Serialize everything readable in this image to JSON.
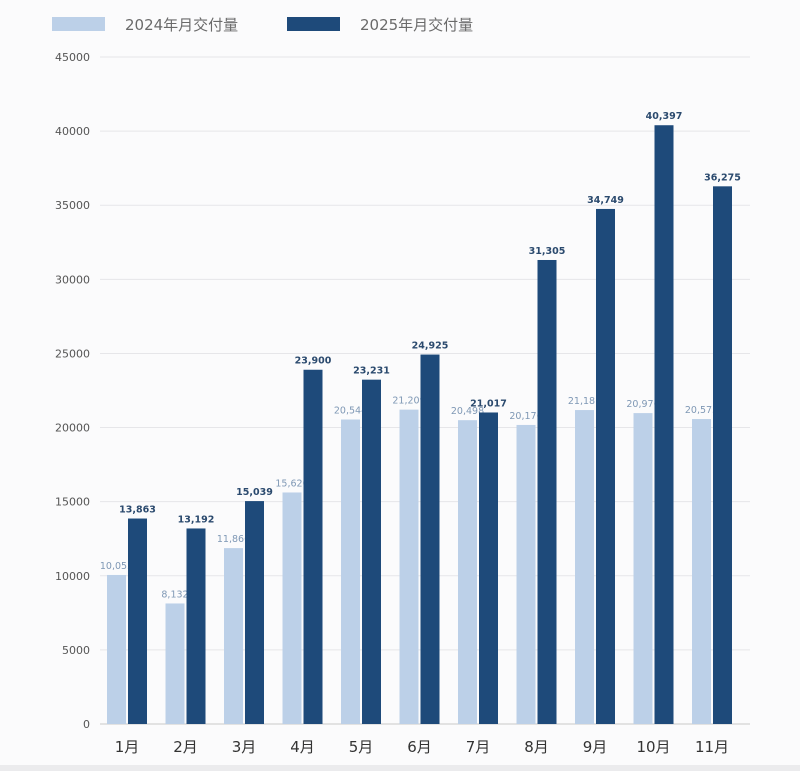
{
  "chart_data": {
    "type": "bar",
    "title": "",
    "xlabel": "",
    "ylabel": "",
    "categories": [
      "1月",
      "2月",
      "3月",
      "4月",
      "5月",
      "6月",
      "7月",
      "8月",
      "9月",
      "10月",
      "11月"
    ],
    "series": [
      {
        "name": "2024年月交付量",
        "color": "#bcd0e8",
        "values": [
          10055,
          8132,
          11866,
          15620,
          20544,
          21209,
          20498,
          20176,
          21181,
          20976,
          20575
        ],
        "labels": [
          "10,055",
          "8,132",
          "11,866",
          "15,620",
          "20,544",
          "21,209",
          "20,498",
          "20,176",
          "21,181",
          "20,976",
          "20,575"
        ]
      },
      {
        "name": "2025年月交付量",
        "color": "#1e4a7a",
        "values": [
          13863,
          13192,
          15039,
          23900,
          23231,
          24925,
          21017,
          31305,
          34749,
          40397,
          36275
        ],
        "labels": [
          "13,863",
          "13,192",
          "15,039",
          "23,900",
          "23,231",
          "24,925",
          "21,017",
          "31,305",
          "34,749",
          "40,397",
          "36,275"
        ]
      }
    ],
    "ylim": [
      0,
      45000
    ],
    "yticks": [
      0,
      5000,
      10000,
      15000,
      20000,
      25000,
      30000,
      35000,
      40000,
      45000
    ],
    "grid": true,
    "legend_position": "top"
  },
  "legend": {
    "items": [
      {
        "label": "2024年月交付量",
        "color": "#bcd0e8"
      },
      {
        "label": "2025年月交付量",
        "color": "#1e4a7a"
      }
    ]
  }
}
